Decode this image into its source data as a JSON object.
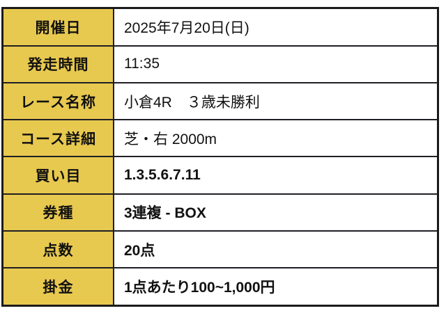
{
  "colors": {
    "header_bg": "#e8c94f",
    "border": "#1a1a1a",
    "text": "#111111",
    "page_bg": "#ffffff"
  },
  "table": {
    "rows": [
      {
        "label": "開催日",
        "value": "2025年7月20日(日)"
      },
      {
        "label": "発走時間",
        "value": "11:35"
      },
      {
        "label": "レース名称",
        "value": "小倉4R　３歳未勝利"
      },
      {
        "label": "コース詳細",
        "value": "芝・右 2000m"
      },
      {
        "label": "買い目",
        "value": "1.3.5.6.7.11"
      },
      {
        "label": "券種",
        "value": "3連複 - BOX"
      },
      {
        "label": "点数",
        "value": "20点"
      },
      {
        "label": "掛金",
        "value": "1点あたり100~1,000円"
      }
    ]
  }
}
